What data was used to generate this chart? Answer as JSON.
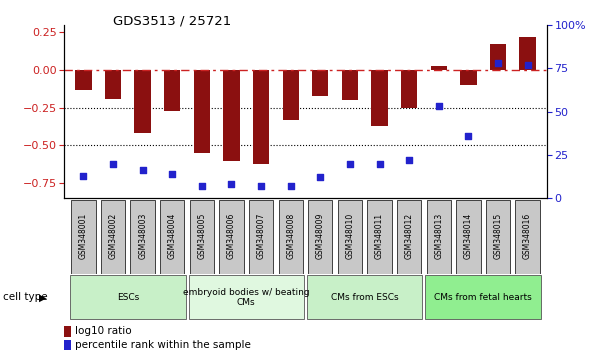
{
  "title": "GDS3513 / 25721",
  "samples": [
    "GSM348001",
    "GSM348002",
    "GSM348003",
    "GSM348004",
    "GSM348005",
    "GSM348006",
    "GSM348007",
    "GSM348008",
    "GSM348009",
    "GSM348010",
    "GSM348011",
    "GSM348012",
    "GSM348013",
    "GSM348014",
    "GSM348015",
    "GSM348016"
  ],
  "log10_ratio": [
    -0.13,
    -0.19,
    -0.42,
    -0.27,
    -0.55,
    -0.6,
    -0.62,
    -0.33,
    -0.17,
    -0.2,
    -0.37,
    -0.25,
    0.03,
    -0.1,
    0.17,
    0.22
  ],
  "percentile_rank": [
    13,
    20,
    16,
    14,
    7,
    8,
    7,
    7,
    12,
    20,
    20,
    22,
    53,
    36,
    78,
    77
  ],
  "cell_types": [
    {
      "label": "ESCs",
      "start": 0,
      "end": 4,
      "color": "#c8f0c8"
    },
    {
      "label": "embryoid bodies w/ beating\nCMs",
      "start": 4,
      "end": 8,
      "color": "#e0f8e0"
    },
    {
      "label": "CMs from ESCs",
      "start": 8,
      "end": 12,
      "color": "#c8f0c8"
    },
    {
      "label": "CMs from fetal hearts",
      "start": 12,
      "end": 16,
      "color": "#90EE90"
    }
  ],
  "bar_color": "#8B1010",
  "dot_color": "#2222CC",
  "ylim_left": [
    -0.85,
    0.3
  ],
  "ylim_right": [
    0,
    100
  ],
  "yticks_left": [
    -0.75,
    -0.5,
    -0.25,
    0,
    0.25
  ],
  "yticks_right": [
    0,
    25,
    50,
    75,
    100
  ],
  "hline_zero_color": "#CC2222",
  "hline_dotted_color": "black",
  "bg_color": "white",
  "cell_type_label": "cell type",
  "legend_log10": "log10 ratio",
  "legend_pct": "percentile rank within the sample",
  "sample_box_color": "#c8c8c8",
  "cell_type_dividers": [
    4,
    8,
    12
  ]
}
